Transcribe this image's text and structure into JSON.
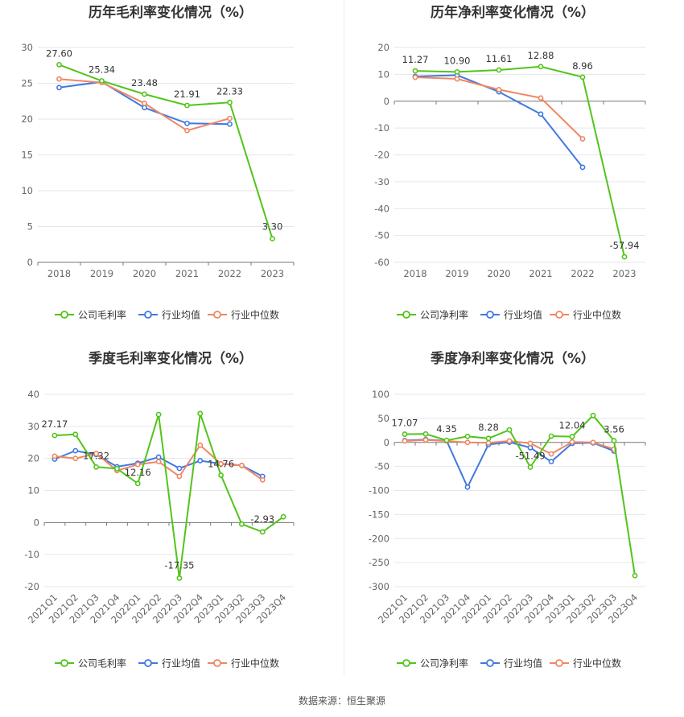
{
  "source": "数据来源：恒生聚源",
  "colors": {
    "company": "#52c41a",
    "industry_avg": "#3f79e0",
    "industry_median": "#f08763"
  },
  "chart_data": [
    {
      "type": "line",
      "title": "历年毛利率变化情况（%）",
      "categories": [
        "2018",
        "2019",
        "2020",
        "2021",
        "2022",
        "2023"
      ],
      "ylim": [
        0,
        30
      ],
      "yticks": [
        0,
        5,
        10,
        15,
        20,
        25,
        30
      ],
      "grid": true,
      "legend_position": "bottom",
      "series": [
        {
          "name": "公司毛利率",
          "values": [
            27.6,
            25.34,
            23.48,
            21.91,
            22.33,
            3.3
          ],
          "labels": [
            "27.60",
            "25.34",
            "23.48",
            "21.91",
            "22.33",
            "3.30"
          ]
        },
        {
          "name": "行业均值",
          "values": [
            24.4,
            25.2,
            21.6,
            19.4,
            19.3,
            null
          ]
        },
        {
          "name": "行业中位数",
          "values": [
            25.6,
            25.1,
            22.2,
            18.4,
            20.1,
            null
          ]
        }
      ]
    },
    {
      "type": "line",
      "title": "历年净利率变化情况（%）",
      "categories": [
        "2018",
        "2019",
        "2020",
        "2021",
        "2022",
        "2023"
      ],
      "ylim": [
        -60,
        20
      ],
      "yticks": [
        -60,
        -50,
        -40,
        -30,
        -20,
        -10,
        0,
        10,
        20
      ],
      "grid": true,
      "legend_position": "bottom",
      "series": [
        {
          "name": "公司净利率",
          "values": [
            11.27,
            10.9,
            11.61,
            12.88,
            8.96,
            -57.94
          ],
          "labels": [
            "11.27",
            "10.90",
            "11.61",
            "12.88",
            "8.96",
            "-57.94"
          ]
        },
        {
          "name": "行业均值",
          "values": [
            9.2,
            9.7,
            3.5,
            -4.8,
            -24.6,
            null
          ]
        },
        {
          "name": "行业中位数",
          "values": [
            8.9,
            8.3,
            4.3,
            1.2,
            -14.0,
            null
          ]
        }
      ]
    },
    {
      "type": "line",
      "title": "季度毛利率变化情况（%）",
      "categories": [
        "2021Q1",
        "2021Q2",
        "2021Q3",
        "2021Q4",
        "2022Q1",
        "2022Q2",
        "2022Q3",
        "2022Q4",
        "2023Q1",
        "2023Q2",
        "2023Q3",
        "2023Q4"
      ],
      "ylim": [
        -20,
        40
      ],
      "yticks": [
        -20,
        -10,
        0,
        10,
        20,
        30,
        40
      ],
      "grid": true,
      "legend_position": "bottom",
      "series": [
        {
          "name": "公司毛利率",
          "values": [
            27.17,
            27.5,
            17.32,
            16.8,
            12.16,
            33.7,
            -17.35,
            34.0,
            14.76,
            -0.5,
            -2.93,
            1.8
          ],
          "labels": [
            "27.17",
            "",
            "17.32",
            "",
            "12.16",
            "",
            "-17.35",
            "",
            "14.76",
            "",
            "-2.93",
            ""
          ]
        },
        {
          "name": "行业均值",
          "values": [
            19.8,
            22.4,
            21.2,
            17.4,
            18.5,
            20.4,
            16.9,
            19.3,
            18.3,
            17.8,
            14.4,
            null
          ]
        },
        {
          "name": "行业中位数",
          "values": [
            20.7,
            20.0,
            21.5,
            16.2,
            18.1,
            19.0,
            14.4,
            24.1,
            18.3,
            17.8,
            13.3,
            null
          ]
        }
      ]
    },
    {
      "type": "line",
      "title": "季度净利率变化情况（%）",
      "categories": [
        "2021Q1",
        "2021Q2",
        "2021Q3",
        "2021Q4",
        "2022Q1",
        "2022Q2",
        "2022Q3",
        "2022Q4",
        "2023Q1",
        "2023Q2",
        "2023Q3",
        "2023Q4"
      ],
      "ylim": [
        -300,
        100
      ],
      "yticks": [
        -300,
        -250,
        -200,
        -150,
        -100,
        -50,
        0,
        50,
        100
      ],
      "grid": true,
      "legend_position": "bottom",
      "series": [
        {
          "name": "公司净利率",
          "values": [
            17.07,
            17.5,
            4.35,
            12.5,
            8.28,
            26.0,
            -51.49,
            13.0,
            12.04,
            56.0,
            3.56,
            -277.0
          ],
          "labels": [
            "17.07",
            "",
            "4.35",
            "",
            "8.28",
            "",
            "-51.49",
            "",
            "12.04",
            "",
            "3.56",
            ""
          ]
        },
        {
          "name": "行业均值",
          "values": [
            4.0,
            6.0,
            3.5,
            -93.0,
            -4.5,
            0.5,
            -11.0,
            -40.0,
            -2.0,
            -1.0,
            -18.0,
            null
          ]
        },
        {
          "name": "行业中位数",
          "values": [
            3.0,
            5.0,
            3.0,
            0.0,
            -1.0,
            3.0,
            -2.0,
            -24.0,
            1.0,
            0.0,
            -14.0,
            null
          ]
        }
      ]
    }
  ]
}
